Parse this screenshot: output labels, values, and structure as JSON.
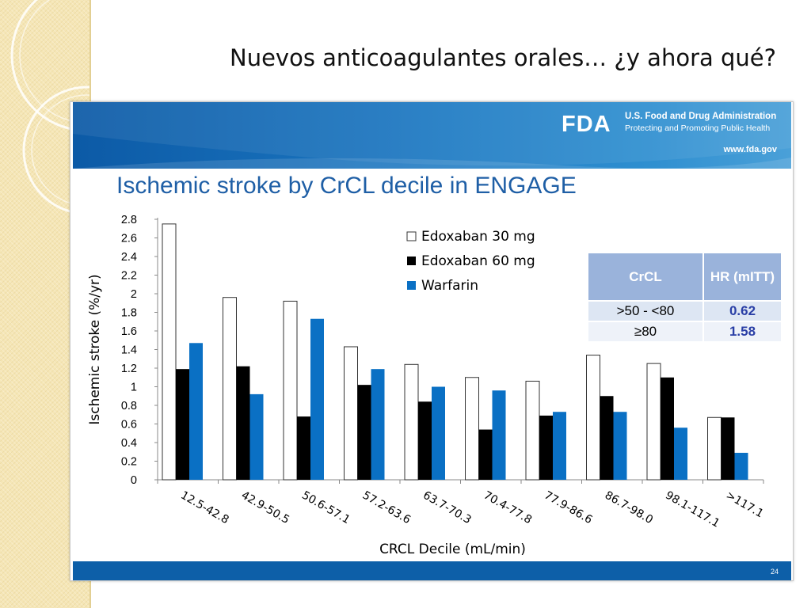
{
  "slide": {
    "title": "Nuevos anticoagulantes orales… ¿y ahora qué?"
  },
  "fda": {
    "logo_text": "FDA",
    "agency_name": "U.S. Food and Drug Administration",
    "tagline": "Protecting and Promoting Public Health",
    "url": "www.fda.gov"
  },
  "page_number": "24",
  "hr_table": {
    "headers": [
      "CrCL",
      "HR (mITT)"
    ],
    "rows": [
      {
        "crcl": ">50 - <80",
        "hr": "0.62"
      },
      {
        "crcl": "≥80",
        "hr": "1.58"
      }
    ]
  },
  "colors": {
    "edoxaban_30": "#ffffff",
    "edoxaban_60": "#000000",
    "warfarin": "#0a70c4",
    "banner": "#0d5fa8",
    "title_blue": "#1f5fa6"
  },
  "chart_data": {
    "type": "bar",
    "title": "Ischemic stroke by CrCL decile in ENGAGE",
    "xlabel": "CRCL Decile (mL/min)",
    "ylabel": "Ischemic stroke (%/yr)",
    "ylim": [
      0,
      2.8
    ],
    "yticks": [
      0,
      0.2,
      0.4,
      0.6,
      0.8,
      1,
      1.2,
      1.4,
      1.6,
      1.8,
      2,
      2.2,
      2.4,
      2.6,
      2.8
    ],
    "legend_position": "top-right",
    "grid": false,
    "categories": [
      "12.5-42.8",
      "42.9-50.5",
      "50.6-57.1",
      "57.2-63.6",
      "63.7-70.3",
      "70.4-77.8",
      "77.9-86.6",
      "86.7-98.0",
      "98.1-117.1",
      ">117.1"
    ],
    "series": [
      {
        "name": "Edoxaban 30 mg",
        "values": [
          2.75,
          1.96,
          1.92,
          1.43,
          1.24,
          1.1,
          1.06,
          1.34,
          1.25,
          0.67
        ]
      },
      {
        "name": "Edoxaban 60 mg",
        "values": [
          1.19,
          1.22,
          0.68,
          1.02,
          0.84,
          0.54,
          0.69,
          0.9,
          1.1,
          0.67
        ]
      },
      {
        "name": "Warfarin",
        "values": [
          1.47,
          0.92,
          1.73,
          1.19,
          1.0,
          0.96,
          0.73,
          0.73,
          0.56,
          0.29
        ]
      }
    ]
  }
}
